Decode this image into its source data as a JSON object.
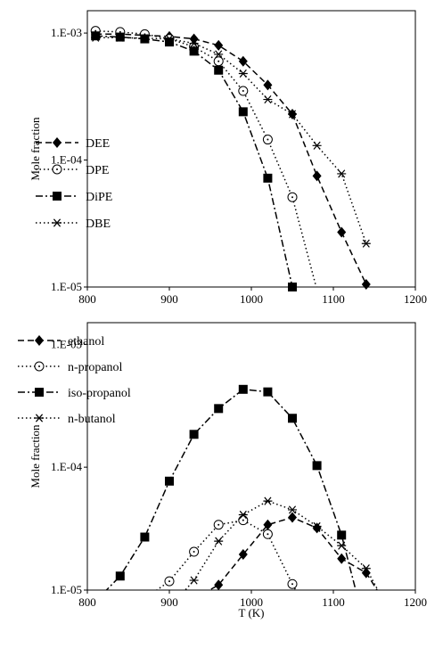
{
  "chart_data": [
    {
      "type": "line",
      "title": "",
      "xlabel": "",
      "ylabel": "Mole fraction",
      "xlim": [
        800,
        1200
      ],
      "ylim": [
        1e-05,
        0.0015
      ],
      "yscale": "log",
      "grid": false,
      "legend_position": "bottom-left",
      "x_ticks": [
        "800",
        "900",
        "1000",
        "1100",
        "1200"
      ],
      "y_ticks": [
        "1.E-05",
        "1.E-04",
        "1.E-03"
      ],
      "series": [
        {
          "name": "DEE",
          "marker": "diamond",
          "dash": "dash",
          "x": [
            810,
            840,
            870,
            900,
            930,
            960,
            990,
            1020,
            1050,
            1080,
            1110,
            1140
          ],
          "y": [
            0.00098,
            0.00098,
            0.00096,
            0.00094,
            0.0009,
            0.0008,
            0.0006,
            0.00039,
            0.00023,
            7.5e-05,
            2.7e-05,
            1.05e-05
          ]
        },
        {
          "name": "DPE",
          "marker": "circle",
          "dash": "dot",
          "x": [
            810,
            840,
            870,
            900,
            930,
            960,
            990,
            1020,
            1050,
            1080
          ],
          "y": [
            0.00104,
            0.00102,
            0.00098,
            0.0009,
            0.00078,
            0.0006,
            0.00035,
            0.000145,
            5.1e-05,
            9.5e-06
          ]
        },
        {
          "name": "DiPE",
          "marker": "square",
          "dash": "dashdot",
          "x": [
            810,
            840,
            870,
            900,
            930,
            960,
            990,
            1020,
            1050
          ],
          "y": [
            0.00095,
            0.00093,
            0.0009,
            0.00085,
            0.00072,
            0.00051,
            0.00024,
            7.2e-05,
            1e-05
          ]
        },
        {
          "name": "DBE",
          "marker": "asterisk",
          "dash": "dot",
          "x": [
            810,
            840,
            870,
            900,
            930,
            960,
            990,
            1020,
            1050,
            1080,
            1110,
            1140
          ],
          "y": [
            0.00092,
            0.00092,
            0.00091,
            0.0009,
            0.00083,
            0.00068,
            0.00048,
            0.0003,
            0.00023,
            0.00013,
            7.8e-05,
            2.2e-05
          ]
        }
      ]
    },
    {
      "type": "line",
      "title": "",
      "xlabel": "T (K)",
      "ylabel": "Mole fraction",
      "xlim": [
        800,
        1200
      ],
      "ylim": [
        1e-05,
        0.0015
      ],
      "yscale": "log",
      "grid": false,
      "legend_position": "top-left",
      "x_ticks": [
        "800",
        "900",
        "1000",
        "1100",
        "1200"
      ],
      "y_ticks": [
        "1.E-05",
        "1.E-04",
        "1.E-03"
      ],
      "series": [
        {
          "name": "ethanol",
          "marker": "diamond",
          "dash": "dash",
          "x": [
            930,
            960,
            990,
            1020,
            1050,
            1080,
            1110,
            1140,
            1160
          ],
          "y": [
            8.5e-06,
            1.1e-05,
            1.95e-05,
            3.4e-05,
            3.9e-05,
            3.2e-05,
            1.8e-05,
            1.38e-05,
            8.5e-06
          ]
        },
        {
          "name": "n-propanol",
          "marker": "circle",
          "dash": "dot",
          "x": [
            880,
            900,
            930,
            960,
            990,
            1020,
            1050,
            1060
          ],
          "y": [
            9.5e-06,
            1.18e-05,
            2.05e-05,
            3.4e-05,
            3.7e-05,
            2.85e-05,
            1.12e-05,
            8.5e-06
          ]
        },
        {
          "name": "iso-propanol",
          "marker": "square",
          "dash": "dashdot",
          "x": [
            820,
            840,
            870,
            900,
            930,
            960,
            990,
            1020,
            1050,
            1080,
            1110,
            1130
          ],
          "y": [
            9.5e-06,
            1.3e-05,
            2.7e-05,
            7.7e-05,
            0.000185,
            0.0003,
            0.00043,
            0.00041,
            0.00025,
            0.000103,
            2.8e-05,
            8.5e-06
          ]
        },
        {
          "name": "n-butanol",
          "marker": "asterisk",
          "dash": "dot",
          "x": [
            910,
            930,
            960,
            990,
            1020,
            1050,
            1080,
            1110,
            1140,
            1160
          ],
          "y": [
            8.5e-06,
            1.2e-05,
            2.5e-05,
            4.1e-05,
            5.3e-05,
            4.5e-05,
            3.3e-05,
            2.3e-05,
            1.5e-05,
            8.5e-06
          ]
        }
      ]
    }
  ]
}
